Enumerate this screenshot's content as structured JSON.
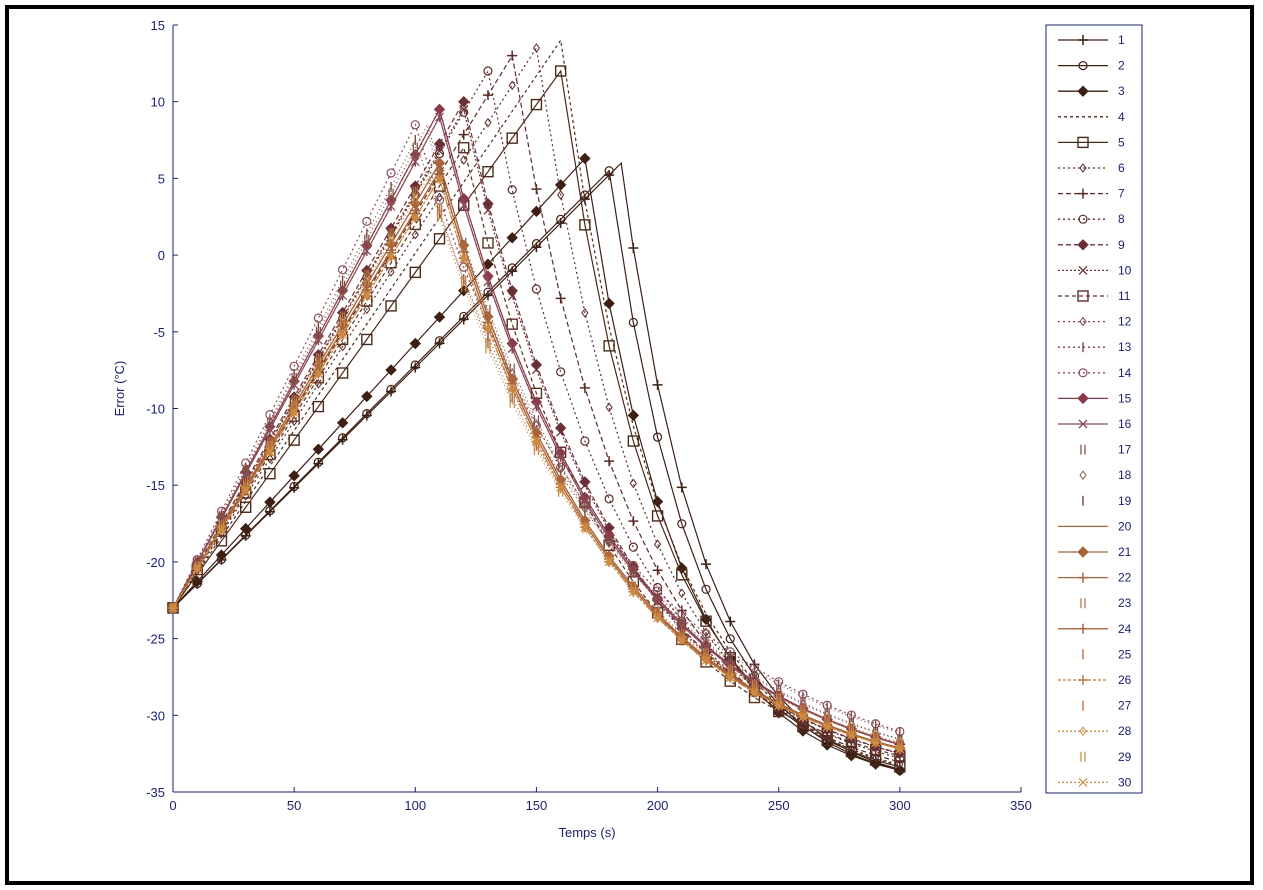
{
  "chart_data": {
    "type": "line",
    "xlabel": "Temps (s)",
    "ylabel": "Error (°C)",
    "xlim": [
      0,
      350
    ],
    "ylim": [
      -35,
      15
    ],
    "xticks": [
      0,
      50,
      100,
      150,
      200,
      250,
      300,
      350
    ],
    "yticks": [
      -35,
      -30,
      -25,
      -20,
      -15,
      -10,
      -5,
      0,
      5,
      10,
      15
    ],
    "ytick_labels": [
      "-35",
      "-30",
      "-25",
      "-20",
      "-15",
      "-10",
      "-5",
      "0",
      "5",
      "10",
      "15"
    ],
    "grid": false,
    "legend_position": "right",
    "x": [
      0,
      10,
      20,
      30,
      40,
      50,
      60,
      70,
      80,
      90,
      100,
      110,
      120,
      130,
      140,
      150,
      160,
      170,
      180,
      190,
      200,
      210,
      220,
      230,
      240,
      250,
      260,
      270,
      280,
      290,
      300
    ],
    "series": [
      {
        "name": "1",
        "peak_time": 185,
        "peak_value": 6,
        "color": "#3d1f14",
        "dash": "none",
        "marker": "plus"
      },
      {
        "name": "2",
        "peak_time": 180,
        "peak_value": 5.5,
        "color": "#3d1f14",
        "dash": "none",
        "marker": "circle"
      },
      {
        "name": "3",
        "peak_time": 170,
        "peak_value": 6.3,
        "color": "#3d1f14",
        "dash": "none",
        "marker": "diamond"
      },
      {
        "name": "4",
        "peak_time": 160,
        "peak_value": 14,
        "color": "#4a2a1a",
        "dash": "3 3",
        "marker": "none"
      },
      {
        "name": "5",
        "peak_time": 160,
        "peak_value": 12,
        "color": "#4a2a1a",
        "dash": "none",
        "marker": "square"
      },
      {
        "name": "6",
        "peak_time": 150,
        "peak_value": 13.5,
        "color": "#5a2a28",
        "dash": "2 3",
        "marker": "diamond-small"
      },
      {
        "name": "7",
        "peak_time": 140,
        "peak_value": 13,
        "color": "#5a2a28",
        "dash": "5 3",
        "marker": "plus"
      },
      {
        "name": "8",
        "peak_time": 130,
        "peak_value": 12,
        "color": "#5a2a28",
        "dash": "2 3",
        "marker": "circle"
      },
      {
        "name": "9",
        "peak_time": 120,
        "peak_value": 10,
        "color": "#6b2f37",
        "dash": "5 3",
        "marker": "diamond"
      },
      {
        "name": "10",
        "peak_time": 120,
        "peak_value": 9.5,
        "color": "#6b2f37",
        "dash": "2 2",
        "marker": "x"
      },
      {
        "name": "11",
        "peak_time": 120,
        "peak_value": 7,
        "color": "#5a3020",
        "dash": "4 3",
        "marker": "square"
      },
      {
        "name": "12",
        "peak_time": 110,
        "peak_value": 9.5,
        "color": "#7a4050",
        "dash": "2 3",
        "marker": "diamond-small"
      },
      {
        "name": "13",
        "peak_time": 110,
        "peak_value": 9,
        "color": "#7a4050",
        "dash": "2 3",
        "marker": "bar"
      },
      {
        "name": "14",
        "peak_time": 100,
        "peak_value": 8.5,
        "color": "#8a4a5a",
        "dash": "2 3",
        "marker": "circle"
      },
      {
        "name": "15",
        "peak_time": 110,
        "peak_value": 9.5,
        "color": "#8a3a4a",
        "dash": "none",
        "marker": "diamond"
      },
      {
        "name": "16",
        "peak_time": 110,
        "peak_value": 9,
        "color": "#8a4a5a",
        "dash": "none",
        "marker": "x"
      },
      {
        "name": "17",
        "peak_time": 105,
        "peak_value": 8.5,
        "color": "#7a4a40",
        "dash": "1 3",
        "marker": "bar2"
      },
      {
        "name": "18",
        "peak_time": 105,
        "peak_value": 8,
        "color": "#8a5a50",
        "dash": "1 3",
        "marker": "diamond-small"
      },
      {
        "name": "19",
        "peak_time": 100,
        "peak_value": 7.5,
        "color": "#7a4a40",
        "dash": "1 3",
        "marker": "bar"
      },
      {
        "name": "20",
        "peak_time": 110,
        "peak_value": 6,
        "color": "#a8643a",
        "dash": "none",
        "marker": "none"
      },
      {
        "name": "21",
        "peak_time": 110,
        "peak_value": 6,
        "color": "#a8643a",
        "dash": "none",
        "marker": "diamond"
      },
      {
        "name": "22",
        "peak_time": 110,
        "peak_value": 5.5,
        "color": "#a8643a",
        "dash": "none",
        "marker": "plus"
      },
      {
        "name": "23",
        "peak_time": 105,
        "peak_value": 5.5,
        "color": "#b07040",
        "dash": "1 3",
        "marker": "bar2"
      },
      {
        "name": "24",
        "peak_time": 110,
        "peak_value": 5.5,
        "color": "#a8643a",
        "dash": "none",
        "marker": "plus"
      },
      {
        "name": "25",
        "peak_time": 105,
        "peak_value": 5.5,
        "color": "#b07040",
        "dash": "1 3",
        "marker": "bar"
      },
      {
        "name": "26",
        "peak_time": 110,
        "peak_value": 5,
        "color": "#c07838",
        "dash": "3 2",
        "marker": "plus"
      },
      {
        "name": "27",
        "peak_time": 110,
        "peak_value": 5,
        "color": "#c07838",
        "dash": "1 3",
        "marker": "bar"
      },
      {
        "name": "28",
        "peak_time": 110,
        "peak_value": 5,
        "color": "#c88840",
        "dash": "2 2",
        "marker": "diamond-small"
      },
      {
        "name": "29",
        "peak_time": 105,
        "peak_value": 5,
        "color": "#c88840",
        "dash": "1 3",
        "marker": "bar2"
      },
      {
        "name": "30",
        "peak_time": 110,
        "peak_value": 5,
        "color": "#d09048",
        "dash": "2 2",
        "marker": "x"
      }
    ]
  }
}
